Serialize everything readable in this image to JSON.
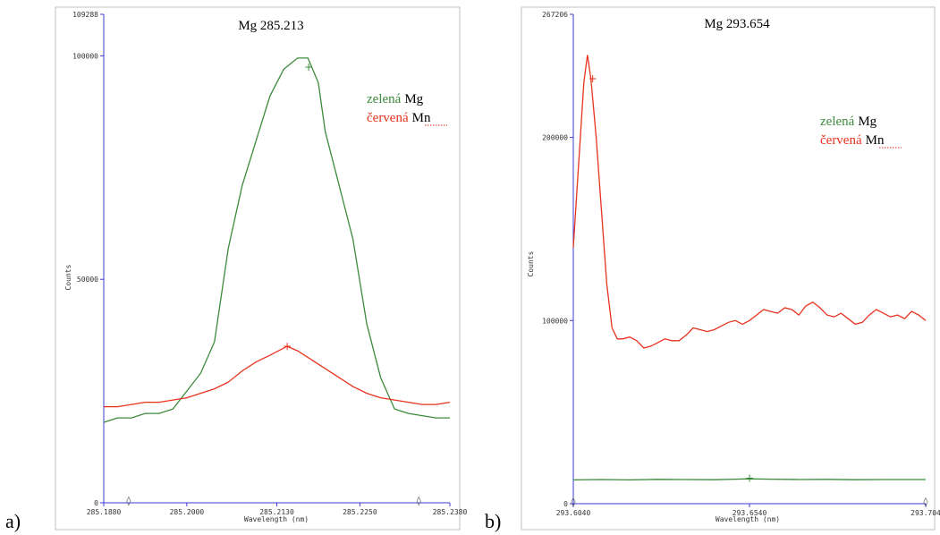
{
  "panels": [
    {
      "letter": "a)",
      "chart_data": {
        "type": "line",
        "title": "Mg 285.213",
        "xlabel": "Wavelength (nm)",
        "ylabel": "Counts",
        "xlim": [
          285.188,
          285.238
        ],
        "ylim": [
          0,
          109288
        ],
        "x_ticks": [
          285.188,
          285.2,
          285.213,
          285.225,
          285.238
        ],
        "x_tick_labels": [
          "285.1880",
          "285.2000",
          "285.2130",
          "285.2250",
          "285.2380"
        ],
        "y_ticks": [
          0,
          50000,
          100000,
          109288
        ],
        "y_tick_labels": [
          "0",
          "50000",
          "100000",
          "109288"
        ],
        "legend": [
          {
            "word": "zelená",
            "element": "Mg",
            "color": "#3b8a3b"
          },
          {
            "word": "červená",
            "element": "Mn",
            "color": "#e8321e"
          }
        ],
        "series": [
          {
            "color": "#3b8a3b",
            "x": [
              285.188,
              285.19,
              285.192,
              285.194,
              285.196,
              285.198,
              285.2,
              285.202,
              285.204,
              285.206,
              285.208,
              285.21,
              285.212,
              285.214,
              285.216,
              285.2175,
              285.219,
              285.22,
              285.222,
              285.224,
              285.226,
              285.228,
              285.23,
              285.232,
              285.234,
              285.236,
              285.238
            ],
            "y": [
              18000,
              19000,
              19000,
              20000,
              20000,
              21000,
              25000,
              29000,
              36000,
              57000,
              71000,
              81000,
              91000,
              97000,
              99500,
              99500,
              94000,
              83000,
              71000,
              59000,
              40000,
              28000,
              21000,
              20000,
              19500,
              19000,
              19000
            ]
          },
          {
            "color": "#e8321e",
            "x": [
              285.188,
              285.19,
              285.192,
              285.194,
              285.196,
              285.198,
              285.2,
              285.202,
              285.204,
              285.206,
              285.208,
              285.21,
              285.212,
              285.2145,
              285.216,
              285.218,
              285.22,
              285.222,
              285.224,
              285.226,
              285.228,
              285.23,
              285.232,
              285.234,
              285.236,
              285.238
            ],
            "y": [
              21500,
              21500,
              22000,
              22500,
              22500,
              23000,
              23500,
              24500,
              25500,
              27000,
              29500,
              31500,
              33000,
              35000,
              34000,
              32000,
              30000,
              28000,
              26000,
              24500,
              23500,
              23000,
              22500,
              22000,
              22000,
              22500
            ]
          }
        ],
        "markers": [
          {
            "symbol": "+",
            "x": 285.2176,
            "y": 97500,
            "color": "#3b8a3b"
          },
          {
            "symbol": "+",
            "x": 285.2145,
            "y": 35000,
            "color": "#e8321e"
          }
        ],
        "baseline_marks": [
          {
            "symbol": "◊",
            "x": 285.1916
          },
          {
            "symbol": "◊",
            "x": 285.2335
          }
        ]
      }
    },
    {
      "letter": "b)",
      "chart_data": {
        "type": "line",
        "title": "Mg 293.654",
        "xlabel": "Wavelength (nm)",
        "ylabel": "Counts",
        "xlim": [
          293.604,
          293.704
        ],
        "ylim": [
          0,
          267206
        ],
        "x_ticks": [
          293.604,
          293.654,
          293.704
        ],
        "x_tick_labels": [
          "293.6040",
          "293.6540",
          "293.704"
        ],
        "y_ticks": [
          0,
          100000,
          200000,
          267206
        ],
        "y_tick_labels": [
          "0",
          "100000",
          "200000",
          "267206"
        ],
        "legend": [
          {
            "word": "zelená",
            "element": "Mg",
            "color": "#3b8a3b"
          },
          {
            "word": "červená",
            "element": "Mn",
            "color": "#e8321e"
          }
        ],
        "series": [
          {
            "color": "#3b8a3b",
            "x": [
              293.604,
              293.612,
              293.62,
              293.628,
              293.636,
              293.644,
              293.65,
              293.654,
              293.66,
              293.668,
              293.676,
              293.684,
              293.692,
              293.7,
              293.704
            ],
            "y": [
              13000,
              13200,
              13000,
              13300,
              13200,
              13100,
              13400,
              13600,
              13400,
              13200,
              13300,
              13100,
              13200,
              13200,
              13200
            ]
          },
          {
            "color": "#e8321e",
            "x": [
              293.604,
              293.6055,
              293.607,
              293.608,
              293.609,
              293.6105,
              293.612,
              293.6135,
              293.615,
              293.6165,
              293.618,
              293.62,
              293.622,
              293.624,
              293.626,
              293.628,
              293.63,
              293.632,
              293.634,
              293.636,
              293.638,
              293.64,
              293.642,
              293.644,
              293.646,
              293.648,
              293.65,
              293.652,
              293.654,
              293.656,
              293.658,
              293.66,
              293.662,
              293.664,
              293.666,
              293.668,
              293.67,
              293.672,
              293.674,
              293.676,
              293.678,
              293.68,
              293.682,
              293.684,
              293.686,
              293.688,
              293.69,
              293.692,
              293.694,
              293.696,
              293.698,
              293.7,
              293.702,
              293.704
            ],
            "y": [
              140000,
              185000,
              230000,
              245000,
              232000,
              200000,
              160000,
              120000,
              96000,
              90000,
              90000,
              91000,
              89000,
              85000,
              86000,
              88000,
              90000,
              89000,
              89000,
              92000,
              96000,
              95000,
              94000,
              95000,
              97000,
              99000,
              100000,
              98000,
              100000,
              103000,
              106000,
              105000,
              104000,
              107000,
              106000,
              103000,
              108000,
              110000,
              107000,
              103000,
              102000,
              104000,
              101000,
              98000,
              99000,
              103000,
              106000,
              104000,
              102000,
              103000,
              101000,
              105000,
              103000,
              100000
            ]
          }
        ],
        "markers": [
          {
            "symbol": "+",
            "x": 293.6095,
            "y": 232000,
            "color": "#e8321e"
          },
          {
            "symbol": "+",
            "x": 293.654,
            "y": 13800,
            "color": "#3b8a3b"
          }
        ],
        "baseline_marks": [
          {
            "symbol": "◊",
            "x": 293.604
          },
          {
            "symbol": "◊",
            "x": 293.704
          }
        ]
      }
    }
  ]
}
